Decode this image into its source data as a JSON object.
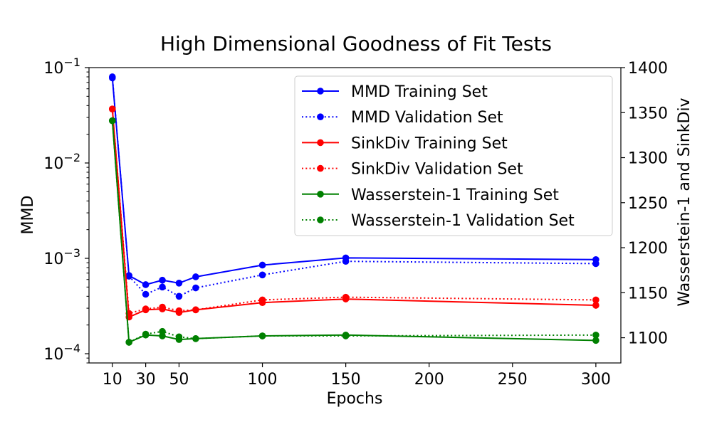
{
  "chart_data": {
    "type": "line",
    "title": "High Dimensional Goodness of Fit Tests",
    "xlabel": "Epochs",
    "ylabel_left": "MMD",
    "ylabel_right": "Wasserstein-1 and SinkDiv",
    "xlim": [
      -4,
      315
    ],
    "left_axis": {
      "scale": "log",
      "ylim": [
        8e-05,
        0.1
      ],
      "tick_values": [
        0.1,
        0.01,
        0.001,
        0.0001
      ],
      "tick_labels": [
        {
          "base": "10",
          "exp": "−1"
        },
        {
          "base": "10",
          "exp": "−2"
        },
        {
          "base": "10",
          "exp": "−3"
        },
        {
          "base": "10",
          "exp": "−4"
        }
      ]
    },
    "right_axis": {
      "scale": "linear",
      "ylim": [
        1072,
        1400
      ],
      "ticks": [
        1100,
        1150,
        1200,
        1250,
        1300,
        1350,
        1400
      ]
    },
    "x_ticks": [
      10,
      30,
      50,
      100,
      150,
      200,
      250,
      300
    ],
    "x": [
      10,
      20,
      30,
      40,
      50,
      60,
      100,
      150,
      300
    ],
    "legend_position": "upper-right",
    "series": [
      {
        "name": "MMD Training Set",
        "axis": "left",
        "color": "#0000ff",
        "style": "solid",
        "values": [
          0.078,
          0.00066,
          0.00053,
          0.00059,
          0.00055,
          0.00064,
          0.00085,
          0.00101,
          0.00097
        ]
      },
      {
        "name": "MMD Validation Set",
        "axis": "left",
        "color": "#0000ff",
        "style": "dotted",
        "values": [
          0.08,
          0.00065,
          0.00042,
          0.0005,
          0.0004,
          0.00049,
          0.00067,
          0.00093,
          0.00088
        ]
      },
      {
        "name": "SinkDiv Training Set",
        "axis": "right",
        "color": "#ff0000",
        "style": "solid",
        "values": [
          1354,
          1123,
          1131,
          1132,
          1128,
          1131,
          1139,
          1143,
          1136
        ]
      },
      {
        "name": "SinkDiv Validation Set",
        "axis": "right",
        "color": "#ff0000",
        "style": "dotted",
        "values": [
          1354,
          1127,
          1132,
          1134,
          1130,
          1131,
          1142,
          1145,
          1142
        ]
      },
      {
        "name": "Wasserstein-1 Training Set",
        "axis": "right",
        "color": "#008000",
        "style": "solid",
        "values": [
          1341,
          1095,
          1103,
          1102,
          1098,
          1099,
          1102,
          1103,
          1097
        ]
      },
      {
        "name": "Wasserstein-1 Validation Set",
        "axis": "right",
        "color": "#008000",
        "style": "dotted",
        "values": [
          1341,
          1095,
          1104,
          1107,
          1101,
          1099,
          1102,
          1102,
          1103
        ]
      }
    ]
  }
}
